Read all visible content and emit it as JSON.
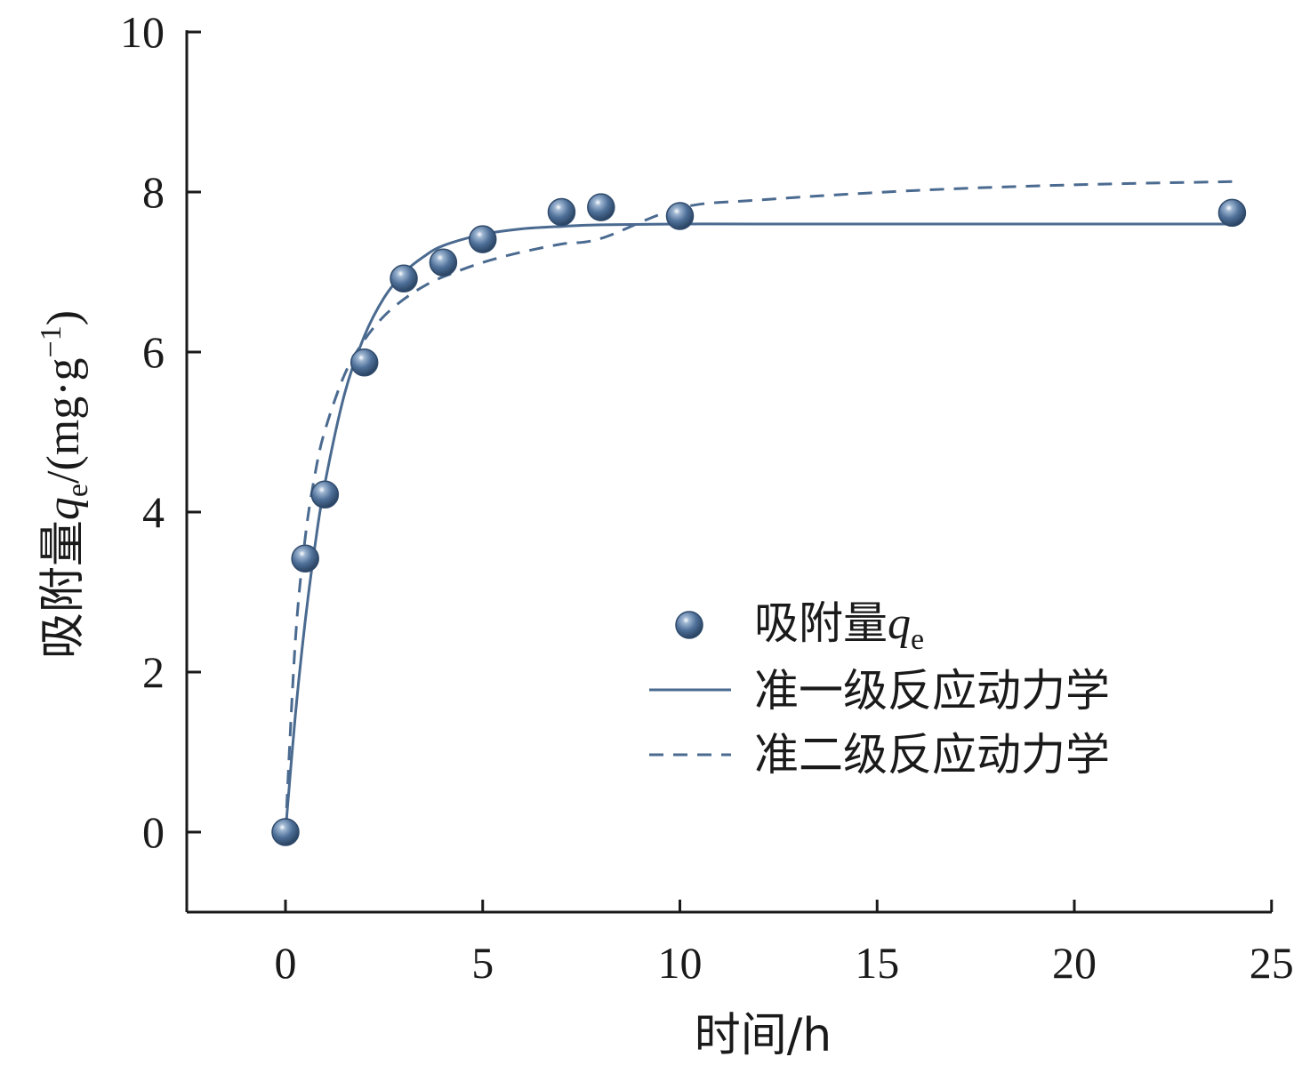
{
  "chart_data": {
    "type": "scatter",
    "x_axis": {
      "label_main": "时间/h",
      "ticks": [
        "0",
        "5",
        "10",
        "15",
        "20",
        "25"
      ],
      "range": [
        -2.5,
        25
      ]
    },
    "y_axis": {
      "label_prefix": "吸附量",
      "label_var": "q",
      "label_sub": "e",
      "label_unit_open": "/(mg·g",
      "label_sup": "−1",
      "label_unit_close": ")",
      "ticks": [
        "0",
        "2",
        "4",
        "6",
        "8",
        "10"
      ],
      "range": [
        -1,
        10
      ]
    },
    "series": [
      {
        "name_prefix": "吸附量",
        "name_var": "q",
        "name_sub": "e",
        "kind": "points",
        "color": "#4a6a90",
        "x": [
          0,
          0.5,
          1,
          2,
          3,
          4,
          5,
          7,
          8,
          10,
          24
        ],
        "y": [
          0,
          3.42,
          4.22,
          5.87,
          6.92,
          7.12,
          7.41,
          7.75,
          7.81,
          7.7,
          7.74
        ]
      },
      {
        "name": "准一级反应动力学",
        "kind": "line",
        "style": "solid",
        "color": "#4a6a90",
        "x": [
          0,
          0.25,
          0.5,
          0.75,
          1,
          1.5,
          2,
          2.5,
          3,
          3.5,
          4,
          5,
          6,
          7,
          8,
          10,
          12,
          16,
          20,
          24
        ],
        "y": [
          0,
          1.46,
          2.64,
          3.59,
          4.36,
          5.48,
          6.2,
          6.68,
          6.99,
          7.19,
          7.33,
          7.47,
          7.54,
          7.57,
          7.59,
          7.6,
          7.6,
          7.6,
          7.6,
          7.6
        ]
      },
      {
        "name": "准二级反应动力学",
        "kind": "line",
        "style": "dashed",
        "color": "#4a6a90",
        "x": [
          0,
          0.25,
          0.5,
          0.75,
          1,
          1.5,
          2,
          2.5,
          3,
          3.5,
          4,
          5,
          6,
          7,
          8,
          10,
          12,
          16,
          20,
          24
        ],
        "y": [
          0,
          2.39,
          3.68,
          4.48,
          5.02,
          5.72,
          6.15,
          6.45,
          6.66,
          6.82,
          6.94,
          7.12,
          7.25,
          7.35,
          7.42,
          7.8,
          7.9,
          8.02,
          8.09,
          8.13
        ]
      }
    ],
    "legend_position": "center-right",
    "grid": false
  }
}
